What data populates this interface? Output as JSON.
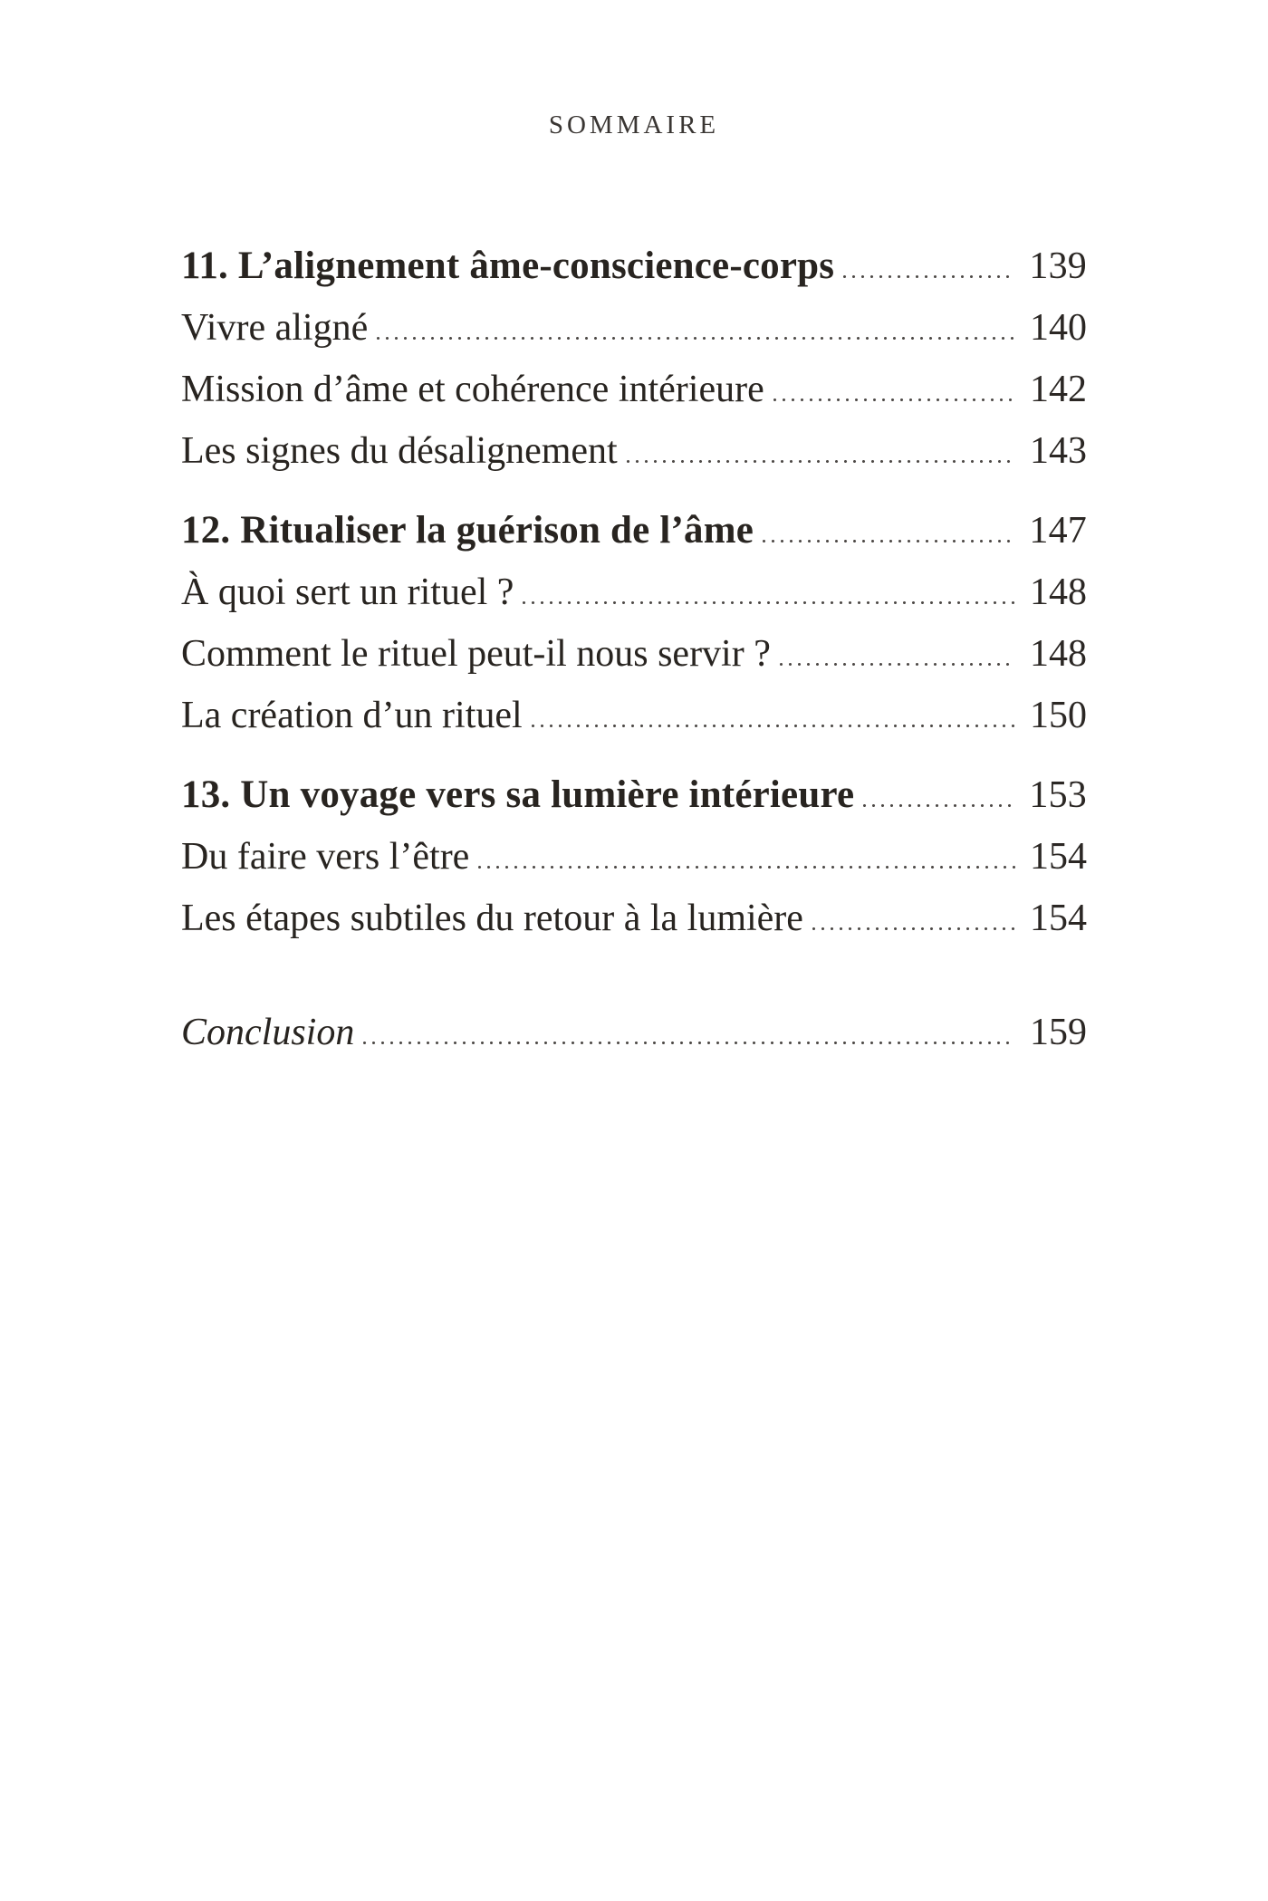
{
  "header": {
    "title": "SOMMAIRE"
  },
  "toc": {
    "rows": [
      {
        "type": "chapter",
        "label": "11. L’alignement âme-conscience-corps",
        "page": "139"
      },
      {
        "type": "entry",
        "label": "Vivre aligné",
        "page": "140"
      },
      {
        "type": "entry",
        "label": "Mission d’âme et cohérence intérieure",
        "page": "142"
      },
      {
        "type": "entry",
        "label": "Les signes du désalignement",
        "page": "143"
      },
      {
        "type": "chapter",
        "label": "12. Ritualiser la guérison de l’âme",
        "page": "147"
      },
      {
        "type": "entry",
        "label": "À quoi sert un rituel ?",
        "page": "148"
      },
      {
        "type": "entry",
        "label": "Comment le rituel peut-il nous servir ?",
        "page": "148"
      },
      {
        "type": "entry",
        "label": "La création d’un rituel",
        "page": "150"
      },
      {
        "type": "chapter",
        "label": "13. Un voyage vers sa lumière intérieure",
        "page": "153"
      },
      {
        "type": "entry",
        "label": "Du faire vers l’être",
        "page": "154"
      },
      {
        "type": "entry",
        "label": "Les étapes subtiles du retour à la lumière",
        "page": "154"
      },
      {
        "type": "conclusion",
        "label": "Conclusion",
        "page": "159"
      }
    ]
  },
  "colors": {
    "ink": "#282420",
    "paper": "#ffffff",
    "leader_dots": "#4e4a47"
  }
}
